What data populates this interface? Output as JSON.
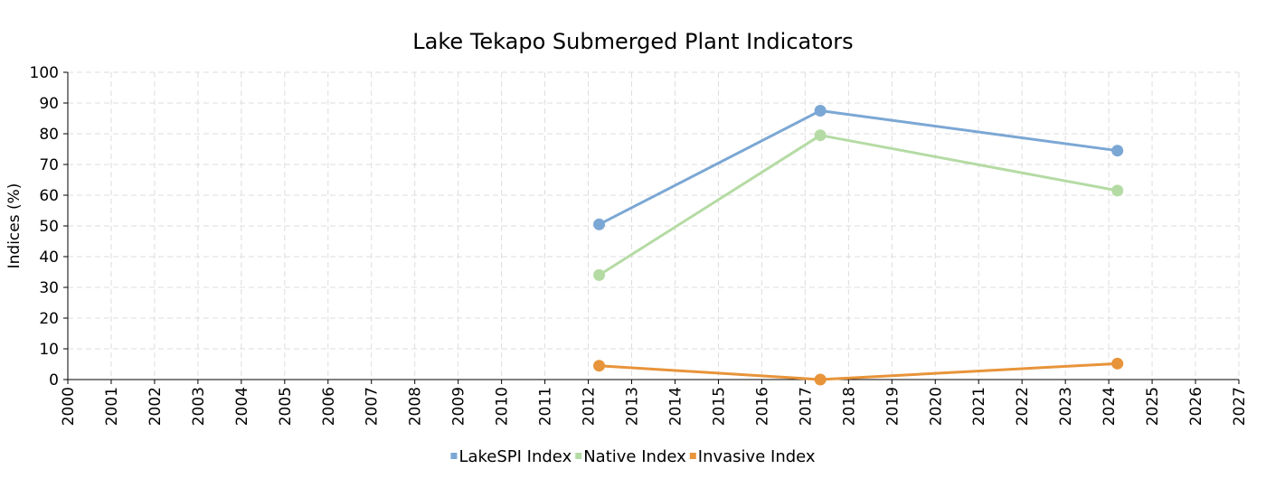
{
  "chart_data": {
    "type": "line",
    "title": "Lake Tekapo Submerged Plant Indicators",
    "xlabel": "",
    "ylabel": "Indices (%)",
    "xlim": [
      2000,
      2027
    ],
    "ylim": [
      0,
      100
    ],
    "x_ticks": [
      "2000",
      "2001",
      "2002",
      "2003",
      "2004",
      "2005",
      "2006",
      "2007",
      "2008",
      "2009",
      "2010",
      "2011",
      "2012",
      "2013",
      "2014",
      "2015",
      "2016",
      "2017",
      "2018",
      "2019",
      "2020",
      "2021",
      "2022",
      "2023",
      "2024",
      "2025",
      "2026",
      "2027"
    ],
    "y_ticks": [
      "0",
      "10",
      "20",
      "30",
      "40",
      "50",
      "60",
      "70",
      "80",
      "90",
      "100"
    ],
    "grid": true,
    "legend_position": "bottom-center",
    "series": [
      {
        "name": "LakeSPI Index",
        "color": "#7ba7d4",
        "x": [
          2012.25,
          2017.35,
          2024.2
        ],
        "values": [
          50.5,
          87.5,
          74.5
        ]
      },
      {
        "name": "Native Index",
        "color": "#b5dba4",
        "x": [
          2012.25,
          2017.35,
          2024.2
        ],
        "values": [
          34,
          79.5,
          61.5
        ]
      },
      {
        "name": "Invasive Index",
        "color": "#e8943a",
        "x": [
          2012.25,
          2017.35,
          2024.2
        ],
        "values": [
          4.5,
          0,
          5.2
        ]
      }
    ]
  }
}
